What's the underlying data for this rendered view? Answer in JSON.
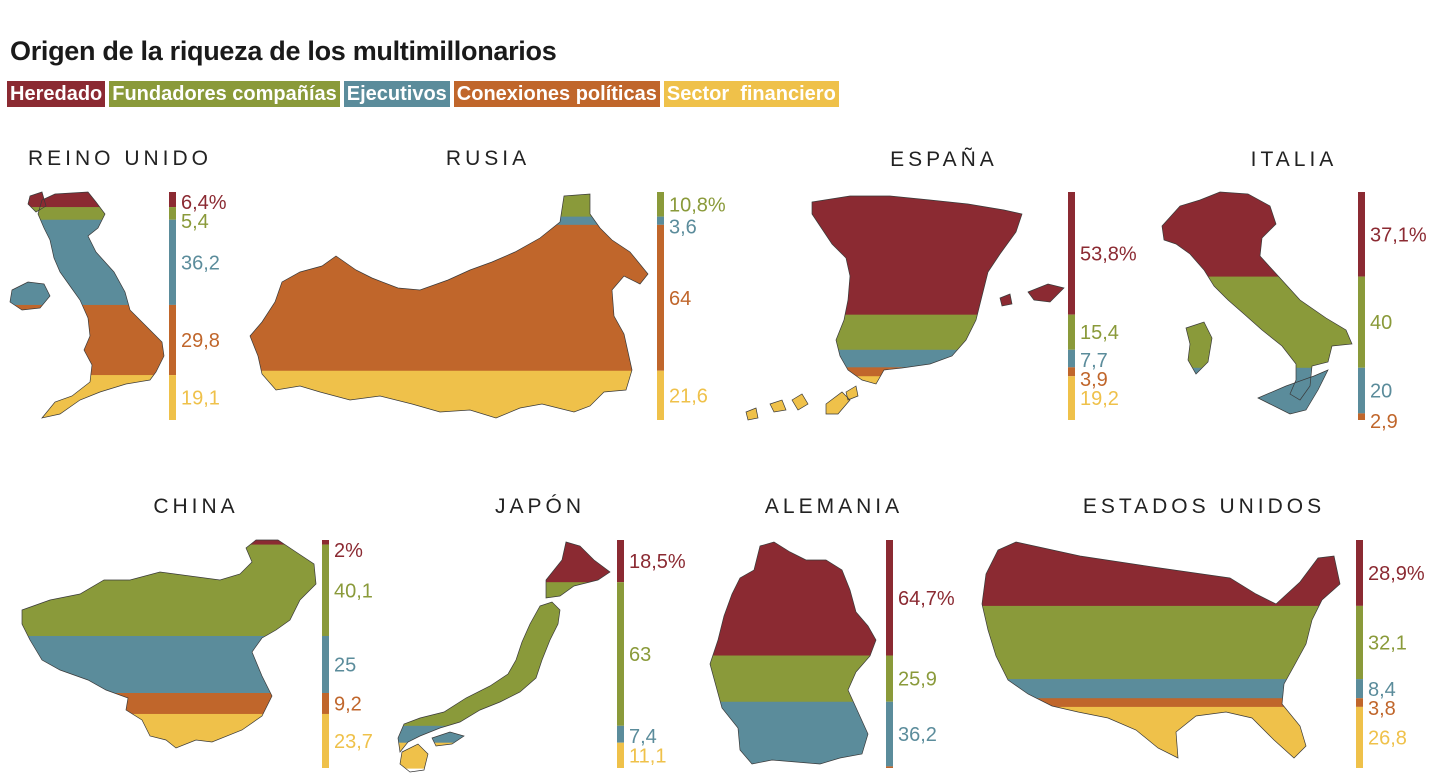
{
  "colors": {
    "heredado": "#8b2a32",
    "fundadores": "#8a9a3a",
    "ejecutivos": "#5b8c9b",
    "conexiones": "#c0662b",
    "financiero": "#efc14a"
  },
  "chart_data": {
    "type": "stacked-bar-map",
    "title": "Origen de la riqueza de los multimillonarios",
    "legend": [
      {
        "key": "heredado",
        "label": "Heredado"
      },
      {
        "key": "fundadores",
        "label": "Fundadores compañías"
      },
      {
        "key": "ejecutivos",
        "label": "Ejecutivos"
      },
      {
        "key": "conexiones",
        "label": "Conexiones políticas"
      },
      {
        "key": "financiero",
        "label": "Sector  financiero"
      }
    ],
    "countries": [
      {
        "name": "REINO UNIDO",
        "segments": [
          {
            "key": "heredado",
            "value": 6.4,
            "label": "6,4%"
          },
          {
            "key": "fundadores",
            "value": 5.4,
            "label": "5,4"
          },
          {
            "key": "ejecutivos",
            "value": 36.2,
            "label": "36,2"
          },
          {
            "key": "conexiones",
            "value": 29.8,
            "label": "29,8"
          },
          {
            "key": "financiero",
            "value": 19.1,
            "label": "19,1"
          }
        ]
      },
      {
        "name": "RUSIA",
        "segments": [
          {
            "key": "fundadores",
            "value": 10.8,
            "label": "10,8%"
          },
          {
            "key": "ejecutivos",
            "value": 3.6,
            "label": "3,6"
          },
          {
            "key": "conexiones",
            "value": 64,
            "label": "64"
          },
          {
            "key": "financiero",
            "value": 21.6,
            "label": "21,6"
          }
        ]
      },
      {
        "name": "ESPAÑA",
        "segments": [
          {
            "key": "heredado",
            "value": 53.8,
            "label": "53,8%"
          },
          {
            "key": "fundadores",
            "value": 15.4,
            "label": "15,4"
          },
          {
            "key": "ejecutivos",
            "value": 7.7,
            "label": "7,7"
          },
          {
            "key": "conexiones",
            "value": 3.9,
            "label": "3,9"
          },
          {
            "key": "financiero",
            "value": 19.2,
            "label": "19,2"
          }
        ]
      },
      {
        "name": "ITALIA",
        "segments": [
          {
            "key": "heredado",
            "value": 37.1,
            "label": "37,1%"
          },
          {
            "key": "fundadores",
            "value": 40,
            "label": "40"
          },
          {
            "key": "ejecutivos",
            "value": 20,
            "label": "20"
          },
          {
            "key": "conexiones",
            "value": 2.9,
            "label": "2,9"
          }
        ]
      },
      {
        "name": "CHINA",
        "segments": [
          {
            "key": "heredado",
            "value": 2,
            "label": "2%"
          },
          {
            "key": "fundadores",
            "value": 40.1,
            "label": "40,1"
          },
          {
            "key": "ejecutivos",
            "value": 25,
            "label": "25"
          },
          {
            "key": "conexiones",
            "value": 9.2,
            "label": "9,2"
          },
          {
            "key": "financiero",
            "value": 23.7,
            "label": "23,7"
          }
        ]
      },
      {
        "name": "JAPÓN",
        "segments": [
          {
            "key": "heredado",
            "value": 18.5,
            "label": "18,5%"
          },
          {
            "key": "fundadores",
            "value": 63,
            "label": "63"
          },
          {
            "key": "ejecutivos",
            "value": 7.4,
            "label": "7,4"
          },
          {
            "key": "financiero",
            "value": 11.1,
            "label": "11,1"
          }
        ]
      },
      {
        "name": "ALEMANIA",
        "segments": [
          {
            "key": "heredado",
            "value": 64.7,
            "label": "64,7%"
          },
          {
            "key": "fundadores",
            "value": 25.9,
            "label": "25,9"
          },
          {
            "key": "ejecutivos",
            "value": 36.2,
            "label": "36,2"
          },
          {
            "key": "conexiones",
            "value": 0.9
          }
        ]
      },
      {
        "name": "ESTADOS UNIDOS",
        "segments": [
          {
            "key": "heredado",
            "value": 28.9,
            "label": "28,9%"
          },
          {
            "key": "fundadores",
            "value": 32.1,
            "label": "32,1"
          },
          {
            "key": "ejecutivos",
            "value": 8.4,
            "label": "8,4"
          },
          {
            "key": "conexiones",
            "value": 3.8,
            "label": "3,8"
          },
          {
            "key": "financiero",
            "value": 26.8,
            "label": "26,8"
          }
        ]
      }
    ]
  }
}
